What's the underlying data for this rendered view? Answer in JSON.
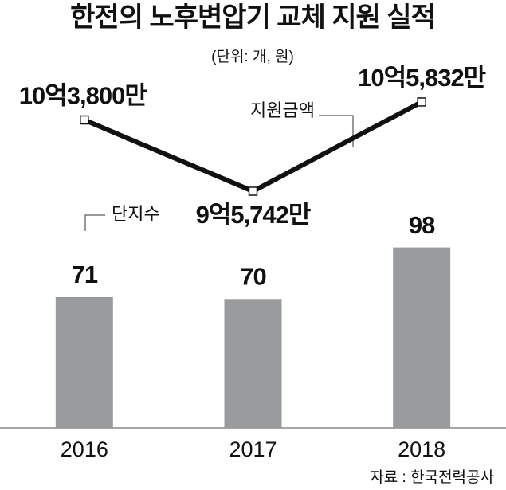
{
  "chart_data": {
    "type": "bar-line",
    "title": "한전의 노후변압기 교체 지원 실적",
    "subtitle": "(단위: 개, 원)",
    "categories": [
      "2016",
      "2017",
      "2018"
    ],
    "series": [
      {
        "name": "단지수",
        "type": "bar",
        "color": "#9a9b9d",
        "values": [
          71,
          70,
          98
        ]
      },
      {
        "name": "지원금액",
        "type": "line",
        "axis": "y2",
        "color": "#111111",
        "values": [
          1038000000,
          957420000,
          1058320000
        ],
        "value_labels": [
          "10억3,800만",
          "9억5,742만",
          "10억5,832만"
        ]
      }
    ],
    "ylim": [
      0,
      200
    ],
    "y2lim": [
      690000000,
      1106000000
    ],
    "source": "자료 : 한국전력공사"
  }
}
